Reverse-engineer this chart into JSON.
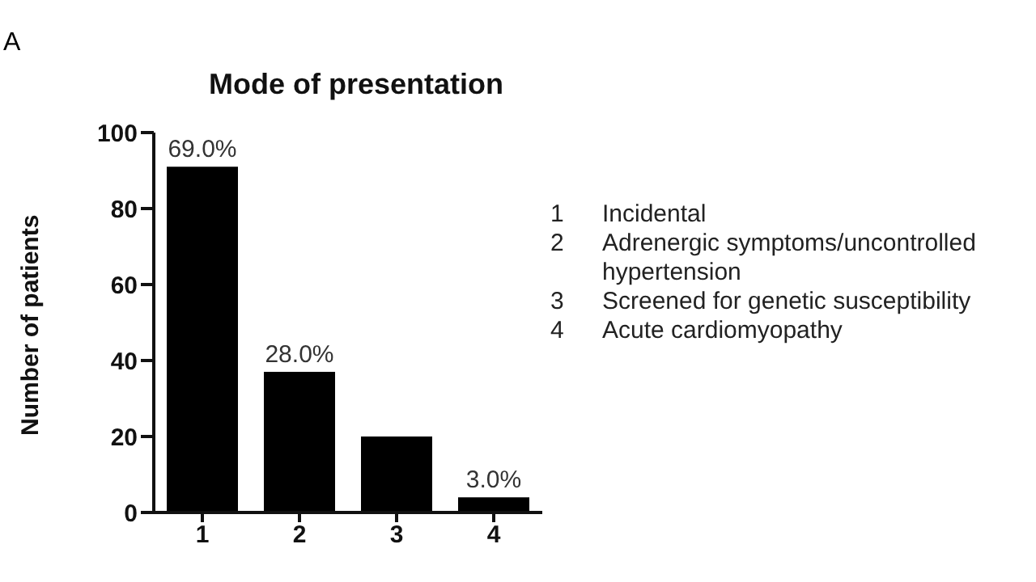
{
  "chart_data": {
    "type": "bar",
    "title": "Mode of presentation",
    "ylabel": "Number of patients",
    "categories": [
      "1",
      "2",
      "3",
      "4"
    ],
    "values": [
      91,
      37,
      20,
      4
    ],
    "color": "#000000",
    "ylim": [
      0,
      100
    ],
    "yticks": [
      0,
      20,
      40,
      60,
      80,
      100
    ],
    "grid": false,
    "legend": false,
    "annotations": [
      "A",
      "1 Incidental",
      "2 Adrenergic symptoms/uncontrolled hypertension",
      "3 Screened for genetic susceptibility",
      "4 Acute cardiomyopathy",
      {
        "text": "69.0%",
        "x": "1",
        "y": 91
      },
      {
        "text": "28.0%",
        "x": "2",
        "y": 37
      },
      {
        "text": "3.0%",
        "x": "4",
        "y": 4
      }
    ]
  }
}
